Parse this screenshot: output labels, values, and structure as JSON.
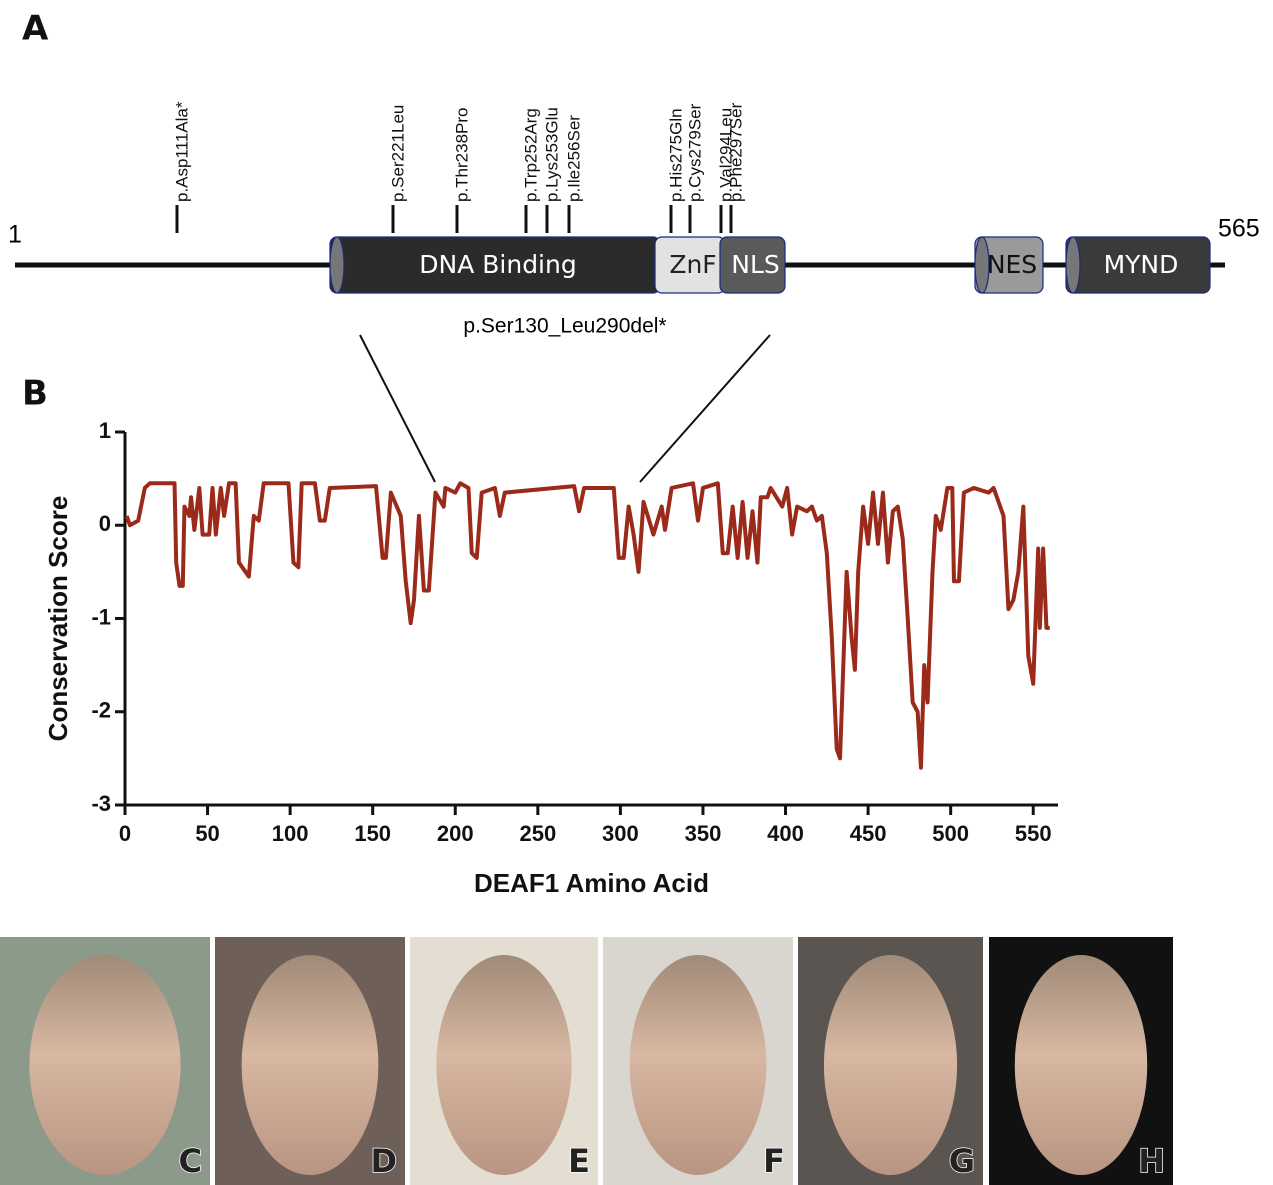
{
  "panel_a": {
    "label": "A",
    "start": 1,
    "end": 565,
    "mutations": [
      "p.Asp111Ala*",
      "p.Ser221Leu",
      "p.Thr238Pro",
      "p.Trp252Arg",
      "p.Lys253Glu",
      "p.Ile256Ser",
      "p.His275Gln",
      "p.Cys279Ser",
      "p.Val294Leu",
      "p.Phe297Ser"
    ],
    "domains": [
      "DNA Binding",
      "ZnF",
      "NLS",
      "NES",
      "MYND"
    ],
    "deletion": "p.Ser130_Leu290del*"
  },
  "panel_b": {
    "label": "B"
  },
  "chart_data": {
    "type": "line",
    "xlabel": "DEAF1 Amino Acid",
    "ylabel": "Conservation Score",
    "color": "#9b2a1a",
    "x": [
      1,
      3,
      8,
      12,
      15,
      30,
      31,
      33,
      35,
      36,
      39,
      40,
      42,
      45,
      47,
      51,
      53,
      55,
      58,
      60,
      63,
      67,
      69,
      75,
      78,
      81,
      84,
      99,
      102,
      105,
      107,
      115,
      118,
      121,
      124,
      152,
      156,
      158,
      161,
      167,
      170,
      173,
      175,
      178,
      181,
      184,
      188,
      193,
      194,
      200,
      203,
      208,
      210,
      213,
      216,
      224,
      227,
      230,
      272,
      275,
      278,
      296,
      299,
      302,
      305,
      308,
      311,
      314,
      320,
      325,
      327,
      331,
      344,
      347,
      350,
      359,
      362,
      365,
      368,
      371,
      374,
      377,
      380,
      383,
      385,
      389,
      391,
      398,
      401,
      404,
      407,
      413,
      416,
      419,
      422,
      425,
      428,
      431,
      433,
      435,
      437,
      440,
      442,
      444,
      447,
      450,
      453,
      456,
      459,
      462,
      465,
      468,
      471,
      474,
      477,
      480,
      482,
      484,
      486,
      489,
      491,
      494,
      498,
      501,
      502,
      505,
      508,
      514,
      523,
      526,
      532,
      535,
      538,
      541,
      544,
      547,
      550,
      553,
      554,
      556,
      558,
      560
    ],
    "values": [
      0.1,
      0.0,
      0.05,
      0.4,
      0.45,
      0.45,
      -0.4,
      -0.65,
      -0.65,
      0.2,
      0.1,
      0.3,
      -0.05,
      0.4,
      -0.1,
      -0.1,
      0.4,
      -0.1,
      0.4,
      0.1,
      0.45,
      0.45,
      -0.4,
      -0.55,
      0.1,
      0.05,
      0.45,
      0.45,
      -0.4,
      -0.45,
      0.45,
      0.45,
      0.05,
      0.05,
      0.4,
      0.42,
      -0.35,
      -0.35,
      0.35,
      0.1,
      -0.6,
      -1.05,
      -0.8,
      0.1,
      -0.7,
      -0.7,
      0.35,
      0.2,
      0.4,
      0.35,
      0.45,
      0.4,
      -0.3,
      -0.35,
      0.35,
      0.4,
      0.1,
      0.35,
      0.42,
      0.15,
      0.4,
      0.4,
      -0.35,
      -0.35,
      0.2,
      -0.1,
      -0.5,
      0.25,
      -0.1,
      0.2,
      -0.05,
      0.4,
      0.45,
      0.05,
      0.4,
      0.45,
      -0.3,
      -0.3,
      0.2,
      -0.35,
      0.25,
      -0.35,
      0.15,
      -0.4,
      0.3,
      0.3,
      0.4,
      0.2,
      0.4,
      -0.1,
      0.2,
      0.15,
      0.2,
      0.05,
      0.1,
      -0.3,
      -1.2,
      -2.4,
      -2.5,
      -1.5,
      -0.5,
      -1.2,
      -1.55,
      -0.5,
      0.2,
      -0.2,
      0.35,
      -0.2,
      0.35,
      -0.4,
      0.15,
      0.2,
      -0.15,
      -1.0,
      -1.9,
      -2.0,
      -2.6,
      -1.5,
      -1.9,
      -0.5,
      0.1,
      -0.05,
      0.4,
      0.4,
      -0.6,
      -0.6,
      0.35,
      0.4,
      0.35,
      0.4,
      0.1,
      -0.9,
      -0.8,
      -0.5,
      0.2,
      -1.4,
      -1.7,
      -0.25,
      -1.1,
      -0.25,
      -1.1,
      -1.1
    ],
    "xlim": [
      0,
      565
    ],
    "ylim": [
      -3,
      1
    ],
    "xticks": [
      0,
      50,
      100,
      150,
      200,
      250,
      300,
      350,
      400,
      450,
      500,
      550
    ],
    "yticks": [
      1,
      0,
      -1,
      -2,
      -3
    ]
  },
  "photos": {
    "labels": [
      "C",
      "D",
      "E",
      "F",
      "G",
      "H"
    ]
  }
}
